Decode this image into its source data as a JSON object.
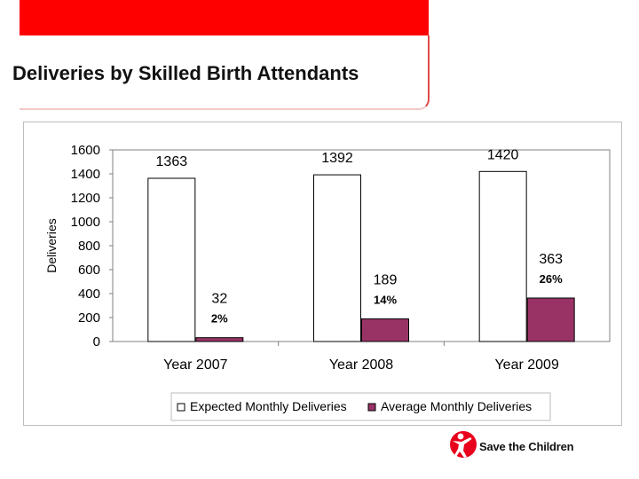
{
  "slide": {
    "title": "Deliveries by Skilled Birth Attendants"
  },
  "logo": {
    "text": "Save the Children",
    "icon": "save-the-children-figure-icon",
    "color": "#e8001c"
  },
  "chart_data": {
    "type": "bar",
    "title": "",
    "xlabel": "",
    "ylabel": "Deliveries",
    "ylim": [
      0,
      1600
    ],
    "yticks": [
      0,
      200,
      400,
      600,
      800,
      1000,
      1200,
      1400,
      1600
    ],
    "categories": [
      "Year 2007",
      "Year 2008",
      "Year 2009"
    ],
    "series": [
      {
        "name": "Expected Monthly Deliveries",
        "values": [
          1363,
          1392,
          1420
        ],
        "color": "#ffffff",
        "stroke": "#000000"
      },
      {
        "name": "Average Monthly Deliveries",
        "values": [
          32,
          189,
          363
        ],
        "percent_labels": [
          "2%",
          "14%",
          "26%"
        ],
        "color": "#993366",
        "stroke": "#000000"
      }
    ],
    "grid": false,
    "legend": "bottom"
  }
}
